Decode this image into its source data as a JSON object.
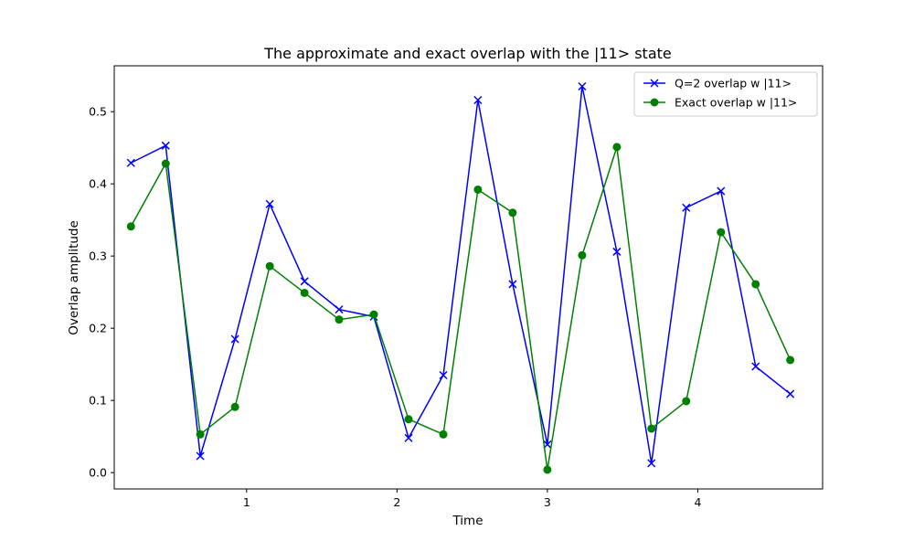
{
  "chart_data": {
    "type": "line",
    "title": "The approximate and exact overlap with the |11> state",
    "xlabel": "Time",
    "ylabel": "Overlap amplitude",
    "xlim": [
      0.12,
      4.83
    ],
    "ylim": [
      -0.0226,
      0.5635
    ],
    "xticks": [
      1,
      2,
      3,
      4
    ],
    "yticks": [
      0.0,
      0.1,
      0.2,
      0.3,
      0.4,
      0.5
    ],
    "xtick_labels": [
      "1",
      "2",
      "3",
      "4"
    ],
    "ytick_labels": [
      "0.0",
      "0.1",
      "0.2",
      "0.3",
      "0.4",
      "0.5"
    ],
    "grid": false,
    "legend_position": "upper right",
    "x": [
      0.231,
      0.462,
      0.692,
      0.923,
      1.154,
      1.385,
      1.615,
      1.846,
      2.077,
      2.308,
      2.538,
      2.769,
      3.0,
      3.231,
      3.462,
      3.692,
      3.923,
      4.154,
      4.385,
      4.615
    ],
    "series": [
      {
        "name": "Q=2 overlap w |11>",
        "color": "#0000ff",
        "marker": "x",
        "values": [
          0.429,
          0.453,
          0.023,
          0.185,
          0.372,
          0.265,
          0.226,
          0.216,
          0.048,
          0.135,
          0.516,
          0.261,
          0.039,
          0.535,
          0.306,
          0.013,
          0.367,
          0.39,
          0.147,
          0.109
        ]
      },
      {
        "name": "Exact overlap w |11>",
        "color": "#008000",
        "marker": "o",
        "values": [
          0.341,
          0.428,
          0.053,
          0.091,
          0.286,
          0.249,
          0.212,
          0.219,
          0.074,
          0.053,
          0.392,
          0.36,
          0.004,
          0.301,
          0.451,
          0.061,
          0.099,
          0.333,
          0.261,
          0.156
        ]
      }
    ]
  }
}
